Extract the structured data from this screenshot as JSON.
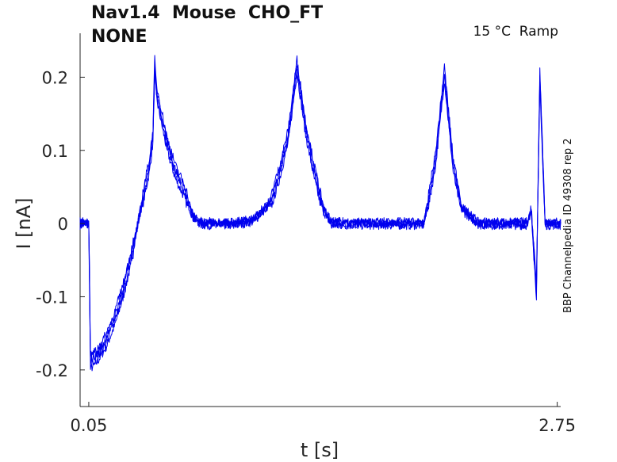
{
  "title_line1": "Nav1.4  Mouse  CHO_FT",
  "title_line2": "NONE",
  "condition": "15 °C  Ramp",
  "side_label": "BBP Channelpedia ID 49308 rep 2",
  "chart_data": {
    "type": "line",
    "xlabel": "t [s]",
    "ylabel": "I [nA]",
    "x_ticks": [
      0.05,
      2.75
    ],
    "x_tick_labels": [
      "0.05",
      "2.75"
    ],
    "y_ticks": [
      -0.2,
      -0.1,
      0,
      0.1,
      0.2
    ],
    "y_tick_labels": [
      "-0.2",
      "-0.1",
      "0",
      "0.1",
      "0.2"
    ],
    "xlim": [
      0.0,
      2.77
    ],
    "ylim": [
      -0.25,
      0.26
    ],
    "grid": false,
    "line_color": "#0000ee",
    "series": [
      {
        "x": [
          0.0,
          0.04,
          0.05,
          0.06,
          0.1,
          0.15,
          0.2,
          0.25,
          0.3,
          0.35,
          0.4,
          0.42,
          0.43,
          0.44,
          0.5,
          0.55,
          0.6,
          0.65,
          0.7,
          0.75,
          0.8,
          0.85,
          0.9,
          1.0,
          1.1,
          1.15,
          1.2,
          1.25,
          1.3,
          1.35,
          1.4,
          1.45,
          1.5,
          1.55,
          1.6,
          1.7,
          1.8,
          1.9,
          1.98,
          2.0,
          2.05,
          2.1,
          2.15,
          2.2,
          2.3,
          2.4,
          2.5,
          2.55,
          2.58,
          2.6,
          2.63,
          2.65,
          2.68,
          2.7,
          2.77
        ],
        "y": [
          0.0,
          0.0,
          0.0,
          -0.19,
          -0.18,
          -0.16,
          -0.13,
          -0.09,
          -0.04,
          0.02,
          0.08,
          0.12,
          0.215,
          0.18,
          0.11,
          0.07,
          0.045,
          0.01,
          0.0,
          0.0,
          0.0,
          0.0,
          0.0,
          0.005,
          0.03,
          0.07,
          0.12,
          0.215,
          0.13,
          0.07,
          0.02,
          0.0,
          0.0,
          0.0,
          0.0,
          0.0,
          0.0,
          0.0,
          0.0,
          0.02,
          0.09,
          0.205,
          0.08,
          0.02,
          0.0,
          0.0,
          0.0,
          0.0,
          0.0,
          0.02,
          -0.09,
          0.2,
          0.0,
          0.0,
          0.0
        ]
      }
    ]
  }
}
